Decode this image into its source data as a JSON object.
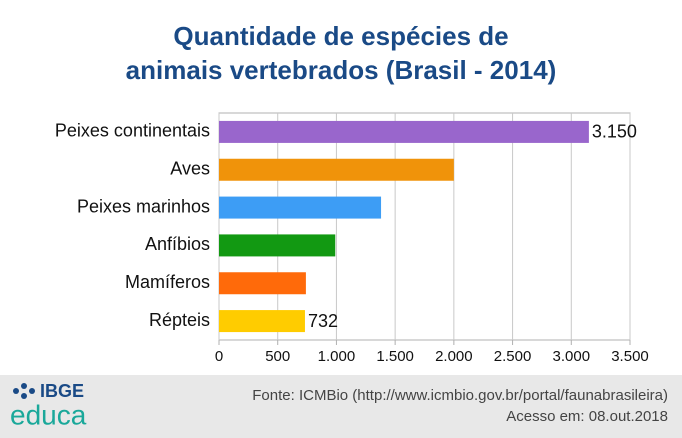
{
  "chart_data": {
    "type": "barh",
    "title": [
      "Quantidade de espécies de",
      "animais vertebrados (Brasil - 2014)"
    ],
    "categories": [
      "Peixes continentais",
      "Aves",
      "Peixes marinhos",
      "Anfíbios",
      "Mamíferos",
      "Répteis"
    ],
    "values": [
      3150,
      2000,
      1380,
      990,
      740,
      732
    ],
    "value_labels": [
      "3.150",
      null,
      null,
      null,
      null,
      "732"
    ],
    "colors": [
      "#9966cc",
      "#f0930a",
      "#3d9df5",
      "#129912",
      "#ff6a0a",
      "#ffcc00"
    ],
    "xlim": [
      0,
      3500
    ],
    "xticks": [
      0,
      500,
      {
        "value": 1000,
        "label": "1.000"
      },
      {
        "value": 1500,
        "label": "1.500"
      },
      {
        "value": 2000,
        "label": "2.000"
      },
      {
        "value": 2500,
        "label": "2.500"
      },
      {
        "value": 3000,
        "label": "3.000"
      },
      {
        "value": 3500,
        "label": "3.500"
      }
    ],
    "grid": true
  },
  "footer": {
    "logo_top": "IBGE",
    "logo_bottom": "educa",
    "source": "Fonte: ICMBio (http://www.icmbio.gov.br/portal/faunabrasileira)",
    "access": "Acesso em: 08.out.2018"
  }
}
